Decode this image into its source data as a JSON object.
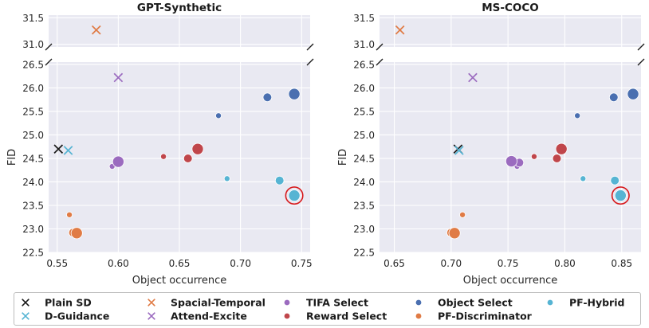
{
  "chart_data": {
    "type": "scatter",
    "ylabel": "FID",
    "xlabel": "Object occurrence",
    "y_ranges": {
      "top": [
        30.95,
        31.55
      ],
      "bottom": [
        22.5,
        26.55
      ]
    },
    "y_ticks_top": [
      "31.5",
      "31.0"
    ],
    "y_ticks_bottom": [
      "26.5",
      "26.0",
      "25.5",
      "25.0",
      "24.5",
      "24.0",
      "23.5",
      "23.0",
      "22.5"
    ],
    "series_styles": [
      {
        "name": "Plain SD",
        "color": "#1a1a1a",
        "marker": "x"
      },
      {
        "name": "D-Guidance",
        "color": "#56b4d3",
        "marker": "x"
      },
      {
        "name": "Spacial-Temporal",
        "color": "#e07b45",
        "marker": "x"
      },
      {
        "name": "Attend-Excite",
        "color": "#9b6bbf",
        "marker": "x"
      },
      {
        "name": "TIFA Select",
        "color": "#9b6bbf",
        "marker": "o"
      },
      {
        "name": "Reward Select",
        "color": "#c0464b",
        "marker": "o"
      },
      {
        "name": "Object Select",
        "color": "#4a6fb0",
        "marker": "o"
      },
      {
        "name": "PF-Discriminator",
        "color": "#e07b45",
        "marker": "o"
      },
      {
        "name": "PF-Hybrid",
        "color": "#56b4d3",
        "marker": "o"
      }
    ],
    "panels": [
      {
        "title": "GPT-Synthetic",
        "xlim": [
          0.543,
          0.757
        ],
        "x_ticks": [
          0.55,
          0.6,
          0.65,
          0.7,
          0.75
        ],
        "x_tick_labels": [
          "0.55",
          "0.60",
          "0.65",
          "0.70",
          "0.75"
        ],
        "series": [
          {
            "name": "Plain SD",
            "points": [
              {
                "x": 0.551,
                "y": 24.7,
                "size": "l"
              }
            ]
          },
          {
            "name": "D-Guidance",
            "points": [
              {
                "x": 0.559,
                "y": 24.67,
                "size": "l"
              }
            ]
          },
          {
            "name": "Spacial-Temporal",
            "points": [
              {
                "x": 0.582,
                "y": 31.27,
                "size": "l"
              }
            ]
          },
          {
            "name": "Attend-Excite",
            "points": [
              {
                "x": 0.6,
                "y": 26.22,
                "size": "l"
              }
            ]
          },
          {
            "name": "TIFA Select",
            "points": [
              {
                "x": 0.595,
                "y": 24.33,
                "size": "s"
              },
              {
                "x": 0.6,
                "y": 24.43,
                "size": "l"
              }
            ]
          },
          {
            "name": "Reward Select",
            "points": [
              {
                "x": 0.637,
                "y": 24.54,
                "size": "s"
              },
              {
                "x": 0.657,
                "y": 24.5,
                "size": "m"
              },
              {
                "x": 0.665,
                "y": 24.7,
                "size": "l"
              }
            ]
          },
          {
            "name": "Object Select",
            "points": [
              {
                "x": 0.682,
                "y": 25.41,
                "size": "s"
              },
              {
                "x": 0.722,
                "y": 25.8,
                "size": "m"
              },
              {
                "x": 0.744,
                "y": 25.87,
                "size": "l"
              }
            ]
          },
          {
            "name": "PF-Discriminator",
            "points": [
              {
                "x": 0.56,
                "y": 23.3,
                "size": "s"
              },
              {
                "x": 0.563,
                "y": 22.92,
                "size": "m"
              },
              {
                "x": 0.566,
                "y": 22.91,
                "size": "l"
              }
            ]
          },
          {
            "name": "PF-Hybrid",
            "points": [
              {
                "x": 0.689,
                "y": 24.07,
                "size": "s"
              },
              {
                "x": 0.732,
                "y": 24.03,
                "size": "m"
              },
              {
                "x": 0.744,
                "y": 23.71,
                "size": "l",
                "highlight": true
              }
            ]
          }
        ]
      },
      {
        "title": "MS-COCO",
        "xlim": [
          0.637,
          0.867
        ],
        "x_ticks": [
          0.65,
          0.7,
          0.75,
          0.8,
          0.85
        ],
        "x_tick_labels": [
          "0.65",
          "0.70",
          "0.75",
          "0.80",
          "0.85"
        ],
        "series": [
          {
            "name": "Plain SD",
            "points": [
              {
                "x": 0.706,
                "y": 24.7,
                "size": "l"
              }
            ]
          },
          {
            "name": "D-Guidance",
            "points": [
              {
                "x": 0.707,
                "y": 24.67,
                "size": "l"
              }
            ]
          },
          {
            "name": "Spacial-Temporal",
            "points": [
              {
                "x": 0.655,
                "y": 31.27,
                "size": "l"
              }
            ]
          },
          {
            "name": "Attend-Excite",
            "points": [
              {
                "x": 0.719,
                "y": 26.22,
                "size": "l"
              }
            ]
          },
          {
            "name": "TIFA Select",
            "points": [
              {
                "x": 0.758,
                "y": 24.33,
                "size": "s"
              },
              {
                "x": 0.76,
                "y": 24.41,
                "size": "m"
              },
              {
                "x": 0.753,
                "y": 24.44,
                "size": "l"
              }
            ]
          },
          {
            "name": "Reward Select",
            "points": [
              {
                "x": 0.773,
                "y": 24.54,
                "size": "s"
              },
              {
                "x": 0.793,
                "y": 24.5,
                "size": "m"
              },
              {
                "x": 0.797,
                "y": 24.7,
                "size": "l"
              }
            ]
          },
          {
            "name": "Object Select",
            "points": [
              {
                "x": 0.811,
                "y": 25.41,
                "size": "s"
              },
              {
                "x": 0.843,
                "y": 25.8,
                "size": "m"
              },
              {
                "x": 0.86,
                "y": 25.87,
                "size": "l"
              }
            ]
          },
          {
            "name": "PF-Discriminator",
            "points": [
              {
                "x": 0.71,
                "y": 23.3,
                "size": "s"
              },
              {
                "x": 0.7,
                "y": 22.92,
                "size": "m"
              },
              {
                "x": 0.703,
                "y": 22.91,
                "size": "l"
              }
            ]
          },
          {
            "name": "PF-Hybrid",
            "points": [
              {
                "x": 0.816,
                "y": 24.07,
                "size": "s"
              },
              {
                "x": 0.844,
                "y": 24.03,
                "size": "m"
              },
              {
                "x": 0.849,
                "y": 23.71,
                "size": "l",
                "highlight": true
              }
            ]
          }
        ]
      }
    ],
    "legend": {
      "placement": "bottom",
      "entries": [
        "Plain SD",
        "D-Guidance",
        "Spacial-Temporal",
        "Attend-Excite",
        "TIFA Select",
        "Reward Select",
        "Object Select",
        "PF-Discriminator",
        "PF-Hybrid"
      ]
    }
  }
}
